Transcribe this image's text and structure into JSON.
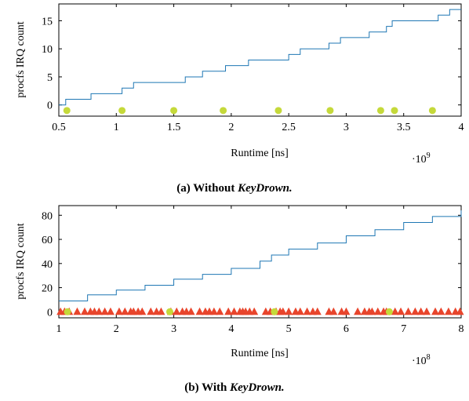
{
  "chart_data": [
    {
      "type": "line",
      "caption_prefix": "(a) Without ",
      "caption_name": "KeyDrown.",
      "xlabel": "Runtime [ns]",
      "ylabel": "procfs IRQ count",
      "x_multiplier": "·10",
      "x_multiplier_exp": "9",
      "xlim": [
        0.5,
        4
      ],
      "ylim": [
        -2,
        18
      ],
      "xticks": [
        "0.5",
        "1",
        "1.5",
        "2",
        "2.5",
        "3",
        "3.5",
        "4"
      ],
      "xtick_values": [
        0.5,
        1,
        1.5,
        2,
        2.5,
        3,
        3.5,
        4
      ],
      "yticks": [
        "0",
        "5",
        "10",
        "15"
      ],
      "ytick_values": [
        0,
        5,
        10,
        15
      ],
      "colors": {
        "line": "#1f77b4",
        "keystroke": "#c5d93a"
      },
      "series": [
        {
          "kind": "step",
          "x": [
            0.5,
            0.56,
            0.6,
            0.78,
            0.95,
            1.05,
            1.15,
            1.35,
            1.55,
            1.6,
            1.75,
            1.95,
            2.1,
            2.15,
            2.35,
            2.5,
            2.6,
            2.75,
            2.85,
            2.95,
            3.05,
            3.2,
            3.3,
            3.35,
            3.4,
            3.55,
            3.6,
            3.8,
            3.85,
            3.9,
            4.0
          ],
          "y": [
            0,
            1,
            1,
            2,
            2,
            3,
            4,
            4,
            4,
            5,
            6,
            7,
            7,
            8,
            8,
            9,
            10,
            10,
            11,
            12,
            12,
            13,
            13,
            14,
            15,
            15,
            15,
            16,
            16,
            17,
            17
          ]
        },
        {
          "kind": "scatter",
          "marker": "circle",
          "x": [
            0.57,
            1.05,
            1.5,
            1.93,
            2.41,
            2.86,
            3.3,
            3.42,
            3.75
          ],
          "y": [
            -1,
            -1,
            -1,
            -1,
            -1,
            -1,
            -1,
            -1,
            -1
          ]
        }
      ]
    },
    {
      "type": "line",
      "caption_prefix": "(b) With ",
      "caption_name": "KeyDrown.",
      "xlabel": "Runtime [ns]",
      "ylabel": "procfs IRQ count",
      "x_multiplier": "·10",
      "x_multiplier_exp": "8",
      "xlim": [
        1,
        8
      ],
      "ylim": [
        -5,
        88
      ],
      "xticks": [
        "1",
        "2",
        "3",
        "4",
        "5",
        "6",
        "7",
        "8"
      ],
      "xtick_values": [
        1,
        2,
        3,
        4,
        5,
        6,
        7,
        8
      ],
      "yticks": [
        "0",
        "20",
        "40",
        "60",
        "80"
      ],
      "ytick_values": [
        0,
        20,
        40,
        60,
        80
      ],
      "colors": {
        "line": "#1f77b4",
        "injected": "#e8452c",
        "keystroke": "#c5d93a"
      },
      "series": [
        {
          "kind": "step",
          "x": [
            1.0,
            1.5,
            2.0,
            2.5,
            3.0,
            3.5,
            4.0,
            4.5,
            4.7,
            5.0,
            5.5,
            6.0,
            6.5,
            7.0,
            7.5,
            8.0
          ],
          "y": [
            9,
            14,
            18,
            22,
            27,
            31,
            36,
            42,
            47,
            52,
            57,
            63,
            68,
            74,
            79,
            84
          ]
        },
        {
          "kind": "scatter",
          "marker": "triangle",
          "x": [
            1.03,
            1.1,
            1.18,
            1.32,
            1.45,
            1.55,
            1.62,
            1.7,
            1.8,
            1.9,
            2.05,
            2.15,
            2.25,
            2.3,
            2.38,
            2.45,
            2.6,
            2.7,
            2.78,
            2.95,
            3.05,
            3.15,
            3.22,
            3.3,
            3.45,
            3.55,
            3.62,
            3.7,
            3.8,
            3.95,
            4.05,
            4.15,
            4.2,
            4.25,
            4.32,
            4.4,
            4.6,
            4.68,
            4.78,
            4.85,
            4.9,
            5.0,
            5.12,
            5.2,
            5.32,
            5.42,
            5.5,
            5.7,
            5.78,
            5.92,
            6.0,
            6.2,
            6.32,
            6.4,
            6.45,
            6.55,
            6.65,
            6.7,
            6.85,
            6.95,
            7.08,
            7.2,
            7.3,
            7.4,
            7.55,
            7.65,
            7.78,
            7.9,
            7.98
          ],
          "y": [
            0,
            0,
            0,
            0,
            0,
            0,
            0,
            0,
            0,
            0,
            0,
            0,
            0,
            0,
            0,
            0,
            0,
            0,
            0,
            0,
            0,
            0,
            0,
            0,
            0,
            0,
            0,
            0,
            0,
            0,
            0,
            0,
            0,
            0,
            0,
            0,
            0,
            0,
            0,
            0,
            0,
            0,
            0,
            0,
            0,
            0,
            0,
            0,
            0,
            0,
            0,
            0,
            0,
            0,
            0,
            0,
            0,
            0,
            0,
            0,
            0,
            0,
            0,
            0,
            0,
            0,
            0,
            0,
            0
          ]
        },
        {
          "kind": "scatter",
          "marker": "circle",
          "x": [
            1.15,
            2.93,
            4.75,
            6.75
          ],
          "y": [
            0,
            0,
            0,
            0
          ]
        }
      ]
    }
  ]
}
